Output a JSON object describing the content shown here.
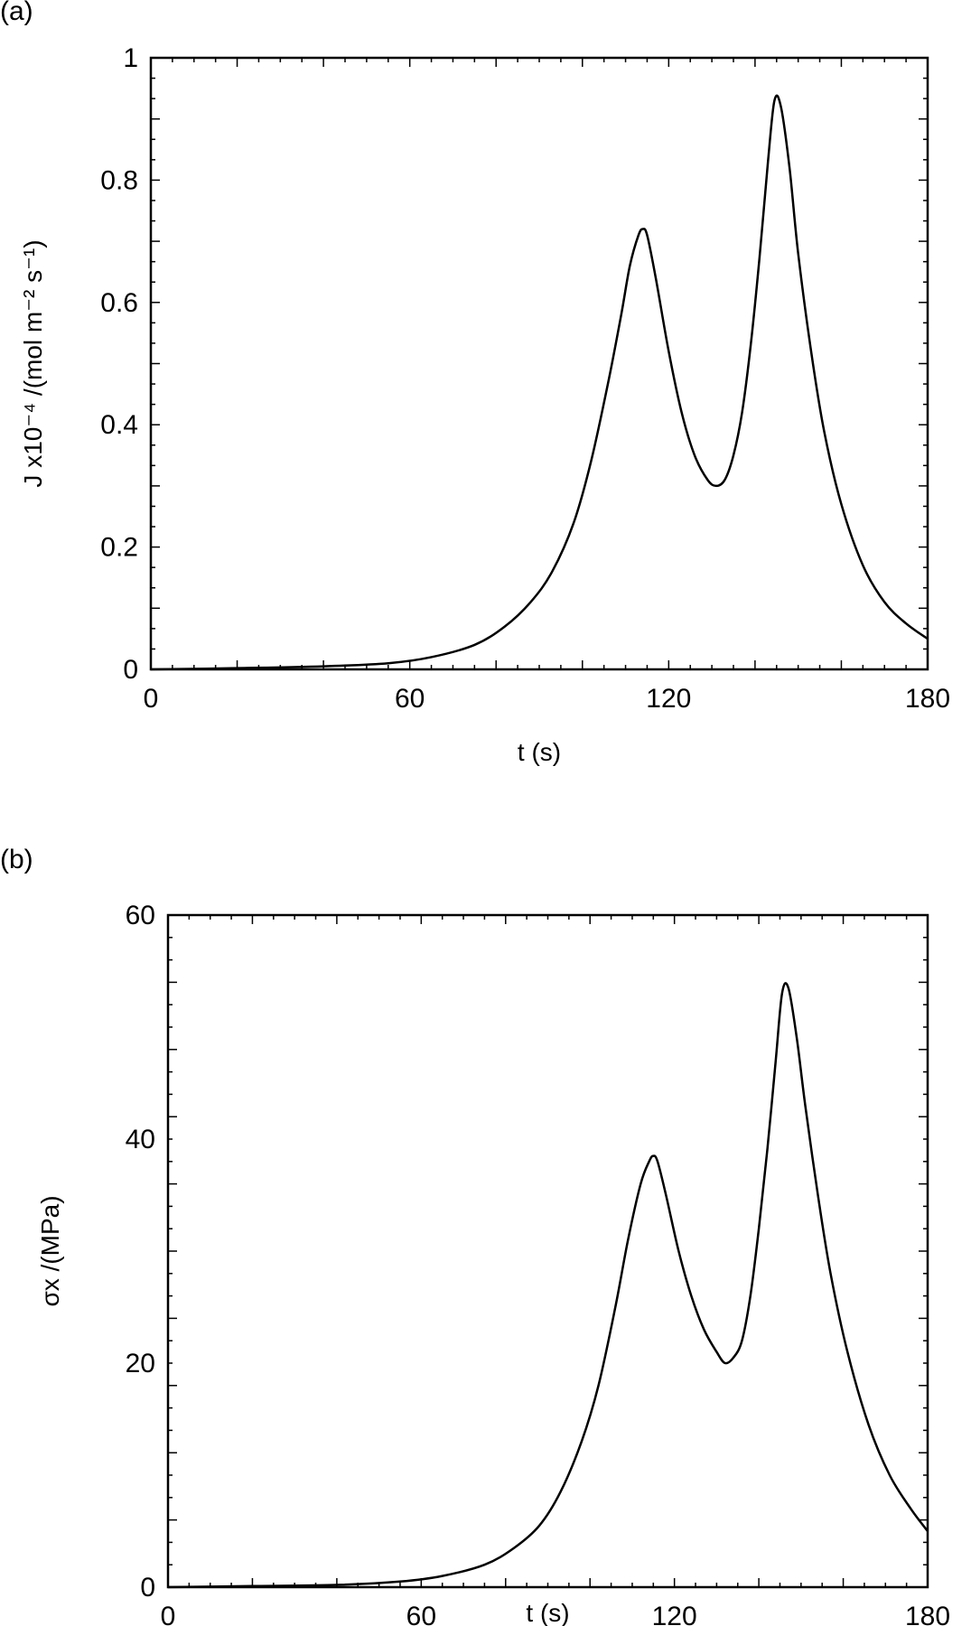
{
  "panels": [
    {
      "label": "(a)"
    },
    {
      "label": "(b)"
    }
  ],
  "chart_data": [
    {
      "type": "line",
      "panel": "(a)",
      "title": "",
      "xlabel": "t (s)",
      "ylabel": "J x10⁻⁴ /(mol m⁻² s⁻¹)",
      "xlim": [
        0,
        180
      ],
      "ylim": [
        0,
        1
      ],
      "xticks": [
        0,
        60,
        120,
        180
      ],
      "xtick_labels": [
        "0",
        "60",
        "120",
        "180"
      ],
      "yticks": [
        0,
        0.2,
        0.4,
        0.6,
        0.8,
        1
      ],
      "ytick_labels": [
        "0",
        "0.2",
        "0.4",
        "0.6",
        "0.8",
        "1"
      ],
      "grid": false,
      "legend": null,
      "series": [
        {
          "name": "J",
          "x": [
            0,
            20,
            40,
            55,
            65,
            75,
            82,
            88,
            93,
            98,
            102,
            106,
            109,
            111,
            113,
            114,
            115,
            117,
            120,
            123,
            126,
            129,
            131,
            133,
            135,
            137,
            139,
            141,
            143,
            144.5,
            146,
            148,
            150,
            153,
            156,
            160,
            165,
            170,
            175,
            180
          ],
          "values": [
            0.0,
            0.002,
            0.005,
            0.01,
            0.02,
            0.04,
            0.07,
            0.11,
            0.16,
            0.24,
            0.34,
            0.47,
            0.58,
            0.66,
            0.71,
            0.72,
            0.71,
            0.64,
            0.52,
            0.42,
            0.35,
            0.31,
            0.3,
            0.31,
            0.35,
            0.42,
            0.53,
            0.67,
            0.83,
            0.93,
            0.92,
            0.82,
            0.68,
            0.52,
            0.39,
            0.27,
            0.17,
            0.11,
            0.075,
            0.05
          ]
        }
      ]
    },
    {
      "type": "line",
      "panel": "(b)",
      "title": "",
      "xlabel": "t (s)",
      "ylabel": "σx /(MPa)",
      "xlim": [
        0,
        180
      ],
      "ylim": [
        0,
        60
      ],
      "xticks": [
        0,
        60,
        120,
        180
      ],
      "xtick_labels": [
        "0",
        "60",
        "120",
        "180"
      ],
      "yticks": [
        0,
        20,
        40,
        60
      ],
      "ytick_labels": [
        "0",
        "20",
        "40",
        "60"
      ],
      "grid": false,
      "legend": null,
      "series": [
        {
          "name": "σx",
          "x": [
            0,
            20,
            40,
            55,
            65,
            75,
            82,
            88,
            93,
            98,
            102,
            106,
            109,
            112,
            114,
            115,
            116,
            118,
            121,
            124,
            127,
            130,
            132,
            134,
            136,
            138,
            140,
            142,
            144,
            145.5,
            147,
            149,
            151,
            154,
            157,
            161,
            166,
            171,
            176,
            180
          ],
          "values": [
            0.0,
            0.1,
            0.2,
            0.5,
            1.0,
            2.0,
            3.5,
            5.5,
            8.5,
            13,
            18,
            25,
            31,
            36,
            38,
            38.5,
            38,
            35,
            30,
            26,
            23,
            21,
            20,
            20.5,
            22,
            26,
            32,
            39,
            47,
            53,
            53.5,
            49,
            43,
            35,
            28,
            21,
            14.5,
            10,
            7,
            5
          ]
        }
      ]
    }
  ]
}
